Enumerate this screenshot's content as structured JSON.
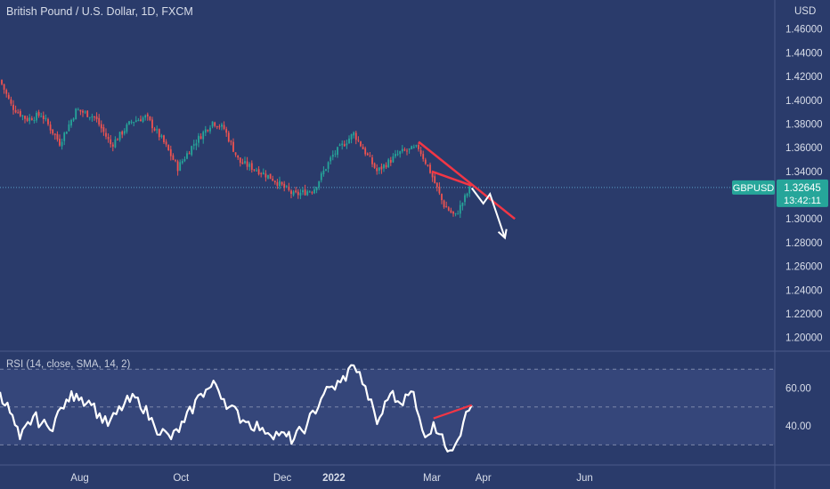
{
  "header": {
    "title": "British Pound / U.S. Dollar, 1D, FXCM"
  },
  "price_axis": {
    "currency": "USD",
    "ticks": [
      "1.46000",
      "1.44000",
      "1.42000",
      "1.40000",
      "1.38000",
      "1.36000",
      "1.34000",
      "1.32000",
      "1.30000",
      "1.28000",
      "1.26000",
      "1.24000",
      "1.22000",
      "1.20000"
    ]
  },
  "price_badge": {
    "symbol": "GBPUSD",
    "price": "1.32645",
    "countdown": "13:42:11"
  },
  "rsi": {
    "label": "RSI (14, close, SMA, 14, 2)",
    "ticks": [
      "60.00",
      "40.00"
    ]
  },
  "time_axis": {
    "labels": [
      "Aug",
      "Oct",
      "Dec",
      "2022",
      "Mar",
      "Apr",
      "Jun"
    ]
  },
  "colors": {
    "up": "#26a69a",
    "down": "#ef5350",
    "trendline": "#f23645",
    "projection": "#ffffff",
    "rsi_line": "#ffffff",
    "badge": "#26a69a"
  },
  "chart_data": [
    {
      "type": "candlestick",
      "title": "British Pound / U.S. Dollar, 1D, FXCM",
      "ylabel": "USD",
      "ylim": [
        1.19,
        1.48
      ],
      "x_labels": [
        "Aug",
        "Oct",
        "Dec",
        "2022",
        "Mar",
        "Apr",
        "Jun"
      ],
      "close_path": [
        {
          "date": "2021-06-14",
          "close": 1.417
        },
        {
          "date": "2021-06-21",
          "close": 1.395
        },
        {
          "date": "2021-06-30",
          "close": 1.384
        },
        {
          "date": "2021-07-09",
          "close": 1.388
        },
        {
          "date": "2021-07-20",
          "close": 1.364
        },
        {
          "date": "2021-07-30",
          "close": 1.392
        },
        {
          "date": "2021-08-10",
          "close": 1.386
        },
        {
          "date": "2021-08-20",
          "close": 1.362
        },
        {
          "date": "2021-09-01",
          "close": 1.382
        },
        {
          "date": "2021-09-10",
          "close": 1.386
        },
        {
          "date": "2021-09-20",
          "close": 1.366
        },
        {
          "date": "2021-09-29",
          "close": 1.343
        },
        {
          "date": "2021-10-08",
          "close": 1.362
        },
        {
          "date": "2021-10-20",
          "close": 1.382
        },
        {
          "date": "2021-10-27",
          "close": 1.376
        },
        {
          "date": "2021-11-05",
          "close": 1.348
        },
        {
          "date": "2021-11-15",
          "close": 1.342
        },
        {
          "date": "2021-11-25",
          "close": 1.334
        },
        {
          "date": "2021-12-08",
          "close": 1.32
        },
        {
          "date": "2021-12-20",
          "close": 1.325
        },
        {
          "date": "2021-12-31",
          "close": 1.353
        },
        {
          "date": "2022-01-13",
          "close": 1.372
        },
        {
          "date": "2022-01-27",
          "close": 1.34
        },
        {
          "date": "2022-02-10",
          "close": 1.356
        },
        {
          "date": "2022-02-21",
          "close": 1.36
        },
        {
          "date": "2022-02-28",
          "close": 1.34
        },
        {
          "date": "2022-03-08",
          "close": 1.312
        },
        {
          "date": "2022-03-15",
          "close": 1.302
        },
        {
          "date": "2022-03-24",
          "close": 1.326
        }
      ],
      "last_price": 1.32645,
      "annotations": {
        "trendline_upper": [
          {
            "date": "2022-02-21",
            "price": 1.365
          },
          {
            "date": "2022-04-20",
            "price": 1.3
          }
        ],
        "trendline_lower": [
          {
            "date": "2022-03-01",
            "price": 1.34
          },
          {
            "date": "2022-03-25",
            "price": 1.328
          }
        ],
        "projection": [
          {
            "date": "2022-03-25",
            "price": 1.326
          },
          {
            "date": "2022-04-01",
            "price": 1.313
          },
          {
            "date": "2022-04-05",
            "price": 1.321
          },
          {
            "date": "2022-04-14",
            "price": 1.284
          }
        ]
      }
    },
    {
      "type": "line",
      "title": "RSI (14, close, SMA, 14, 2)",
      "ylim": [
        25,
        80
      ],
      "ticks": [
        60,
        40
      ],
      "levels": [
        70,
        50,
        30
      ],
      "series": [
        {
          "points": [
            {
              "date": "2021-06-14",
              "value": 58
            },
            {
              "date": "2021-06-20",
              "value": 47
            },
            {
              "date": "2021-06-26",
              "value": 33
            },
            {
              "date": "2021-07-04",
              "value": 45
            },
            {
              "date": "2021-07-14",
              "value": 38
            },
            {
              "date": "2021-07-24",
              "value": 54
            },
            {
              "date": "2021-07-30",
              "value": 57
            },
            {
              "date": "2021-08-08",
              "value": 51
            },
            {
              "date": "2021-08-18",
              "value": 40
            },
            {
              "date": "2021-08-28",
              "value": 52
            },
            {
              "date": "2021-09-05",
              "value": 55
            },
            {
              "date": "2021-09-15",
              "value": 40
            },
            {
              "date": "2021-09-25",
              "value": 33
            },
            {
              "date": "2021-10-03",
              "value": 42
            },
            {
              "date": "2021-10-13",
              "value": 57
            },
            {
              "date": "2021-10-22",
              "value": 62
            },
            {
              "date": "2021-10-30",
              "value": 50
            },
            {
              "date": "2021-11-09",
              "value": 42
            },
            {
              "date": "2021-11-19",
              "value": 39
            },
            {
              "date": "2021-11-29",
              "value": 35
            },
            {
              "date": "2021-12-08",
              "value": 33
            },
            {
              "date": "2021-12-16",
              "value": 41
            },
            {
              "date": "2021-12-26",
              "value": 57
            },
            {
              "date": "2022-01-05",
              "value": 63
            },
            {
              "date": "2022-01-13",
              "value": 72
            },
            {
              "date": "2022-01-20",
              "value": 61
            },
            {
              "date": "2022-01-27",
              "value": 41
            },
            {
              "date": "2022-02-04",
              "value": 57
            },
            {
              "date": "2022-02-10",
              "value": 52
            },
            {
              "date": "2022-02-18",
              "value": 58
            },
            {
              "date": "2022-02-25",
              "value": 34
            },
            {
              "date": "2022-03-02",
              "value": 42
            },
            {
              "date": "2022-03-09",
              "value": 29
            },
            {
              "date": "2022-03-15",
              "value": 30
            },
            {
              "date": "2022-03-20",
              "value": 42
            },
            {
              "date": "2022-03-25",
              "value": 51
            }
          ]
        }
      ],
      "annotations": {
        "trendline": [
          {
            "date": "2022-03-02",
            "value": 44
          },
          {
            "date": "2022-03-25",
            "value": 51
          }
        ]
      }
    }
  ]
}
